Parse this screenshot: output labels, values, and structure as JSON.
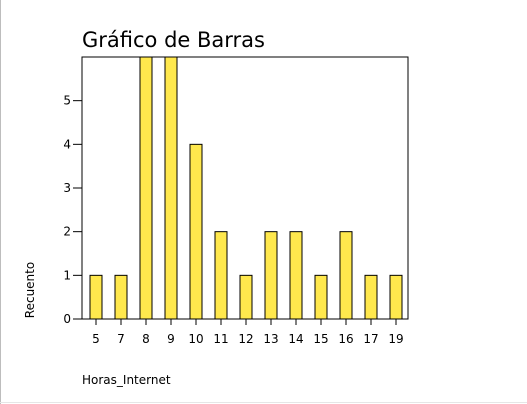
{
  "chart_data": {
    "type": "bar",
    "title": "Gráfico de Barras",
    "xlabel": "Horas_Internet",
    "ylabel": "Recuento",
    "categories": [
      "5",
      "7",
      "8",
      "9",
      "10",
      "11",
      "12",
      "13",
      "14",
      "15",
      "16",
      "17",
      "19"
    ],
    "values": [
      1,
      1,
      6,
      6,
      4,
      2,
      1,
      2,
      2,
      1,
      2,
      1,
      1
    ],
    "ylim": [
      0,
      6
    ],
    "yticks": [
      0,
      1,
      2,
      3,
      4,
      5
    ],
    "grid": false,
    "legend": "none",
    "colors": {
      "bar_fill": "#ffe84d",
      "bar_stroke": "#000000",
      "axis": "#000000"
    }
  }
}
